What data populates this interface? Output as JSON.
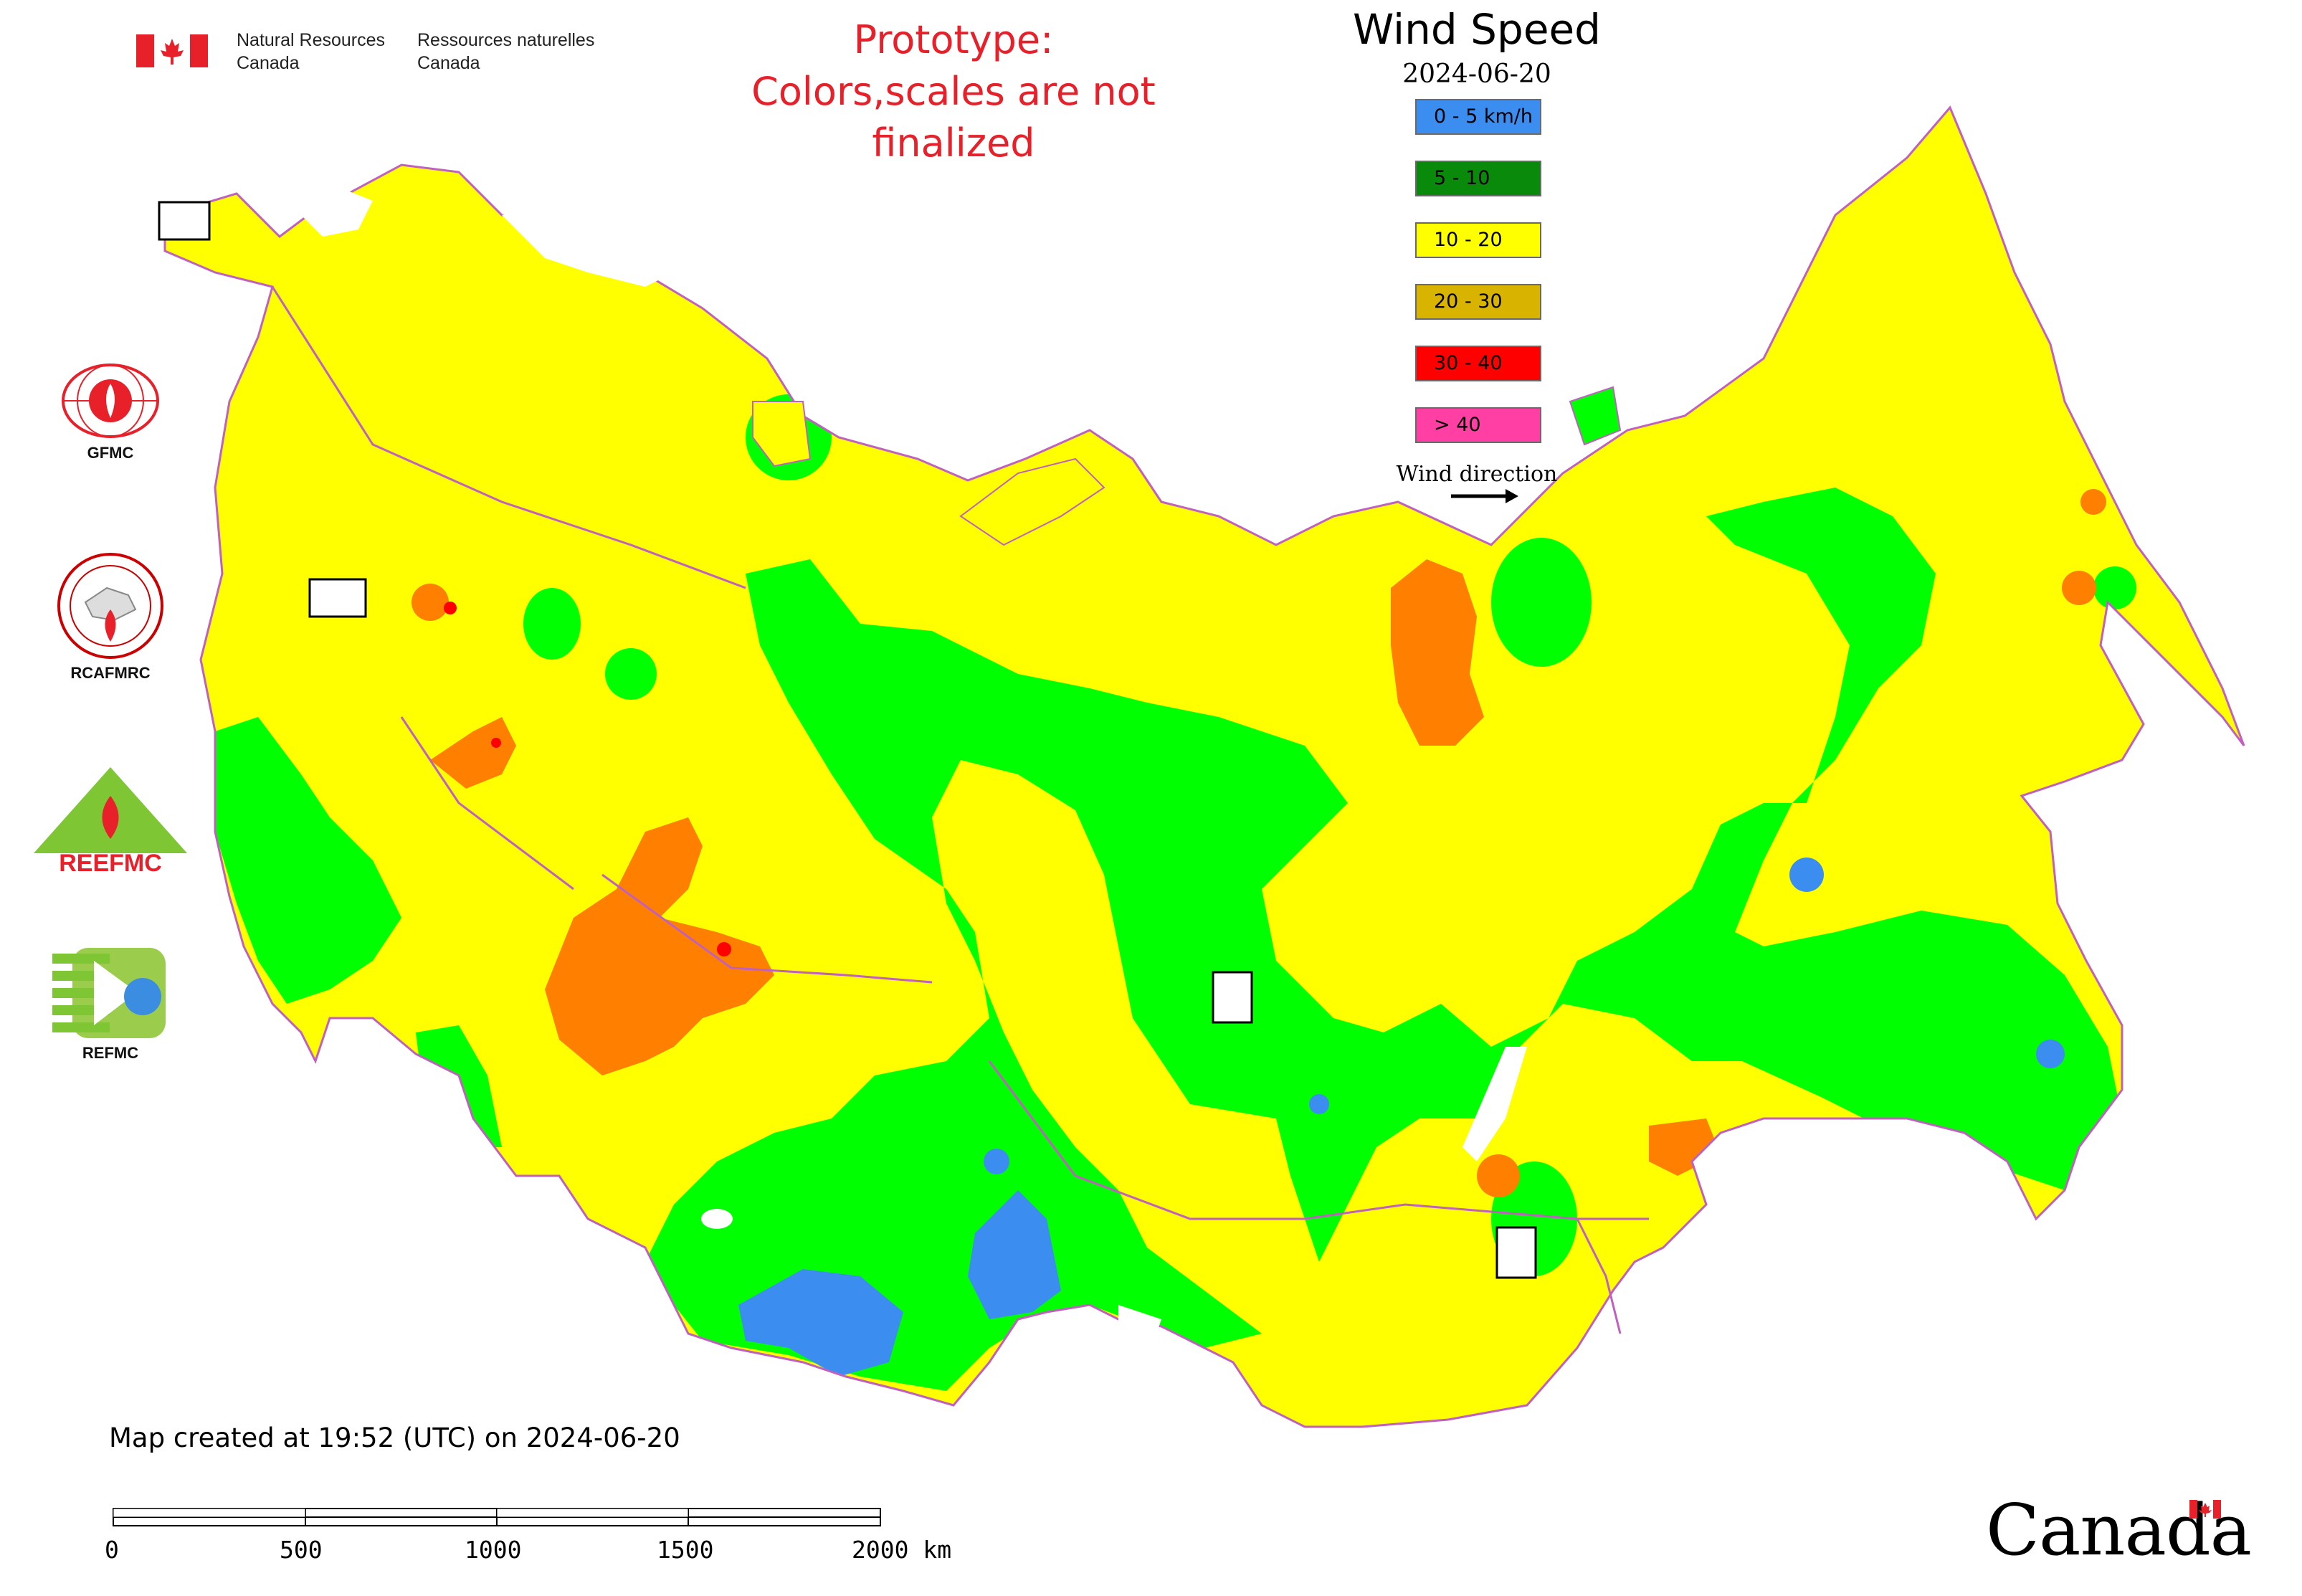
{
  "header": {
    "nrcan_en": [
      "Natural Resources",
      "Canada"
    ],
    "nrcan_fr": [
      "Ressources naturelles",
      "Canada"
    ],
    "prototype_lines": [
      "Prototype:",
      "Colors,scales are not finalized"
    ]
  },
  "legend": {
    "title": "Wind Speed",
    "date": "2024-06-20",
    "items": [
      {
        "label": "0 - 5 km/h",
        "color": "#3b8ef0"
      },
      {
        "label": "5 - 10",
        "color": "#0a8a0a"
      },
      {
        "label": "10 - 20",
        "color": "#ffff00"
      },
      {
        "label": "20 - 30",
        "color": "#d8b400"
      },
      {
        "label": "30 - 40",
        "color": "#ff0000"
      },
      {
        "label": "> 40",
        "color": "#ff3fa4"
      }
    ],
    "wind_direction_label": "Wind direction"
  },
  "colors": {
    "calm": "#3b8ef0",
    "low": "#00ff00",
    "moderate": "#ffff00",
    "high": "#ff8000",
    "very_high": "#ff0000",
    "border": "#c060c0"
  },
  "logos": [
    {
      "label": "GFMC",
      "icon": "gfmc-logo"
    },
    {
      "label": "RCAFMRC",
      "icon": "rcafmrc-logo"
    },
    {
      "label": "REEFMC",
      "icon": "reefmc-logo"
    },
    {
      "label": "REFMC",
      "icon": "refmc-logo"
    }
  ],
  "footer": {
    "created": "Map created at 19:52 (UTC) on 2024-06-20",
    "scale_labels": [
      "0",
      "500",
      "1000",
      "1500",
      "2000 km"
    ],
    "wordmark": "Canada"
  }
}
